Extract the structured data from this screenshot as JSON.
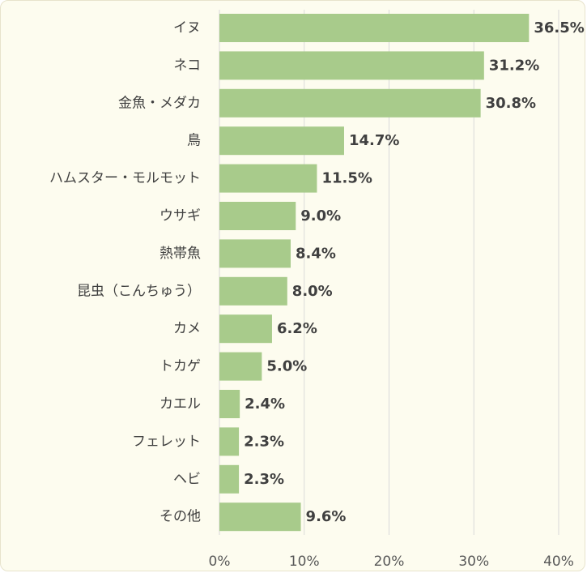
{
  "chart_data": {
    "type": "bar",
    "orientation": "horizontal",
    "categories": [
      "イヌ",
      "ネコ",
      "金魚・メダカ",
      "鳥",
      "ハムスター・モルモット",
      "ウサギ",
      "熱帯魚",
      "昆虫（こんちゅう）",
      "カメ",
      "トカゲ",
      "カエル",
      "フェレット",
      "ヘビ",
      "その他"
    ],
    "values": [
      36.5,
      31.2,
      30.8,
      14.7,
      11.5,
      9.0,
      8.4,
      8.0,
      6.2,
      5.0,
      2.4,
      2.3,
      2.3,
      9.6
    ],
    "value_labels": [
      "36.5%",
      "31.2%",
      "30.8%",
      "14.7%",
      "11.5%",
      "9.0%",
      "8.4%",
      "8.0%",
      "6.2%",
      "5.0%",
      "2.4%",
      "2.3%",
      "2.3%",
      "9.6%"
    ],
    "xlim": [
      0,
      40
    ],
    "x_ticks": [
      0,
      10,
      20,
      30,
      40
    ],
    "x_tick_labels": [
      "0%",
      "10%",
      "20%",
      "30%",
      "40%"
    ],
    "grid": true,
    "legend": "none",
    "bar_color": "#a8cb8b",
    "background_color": "#fdfcef",
    "title": "",
    "xlabel": "",
    "ylabel": ""
  }
}
